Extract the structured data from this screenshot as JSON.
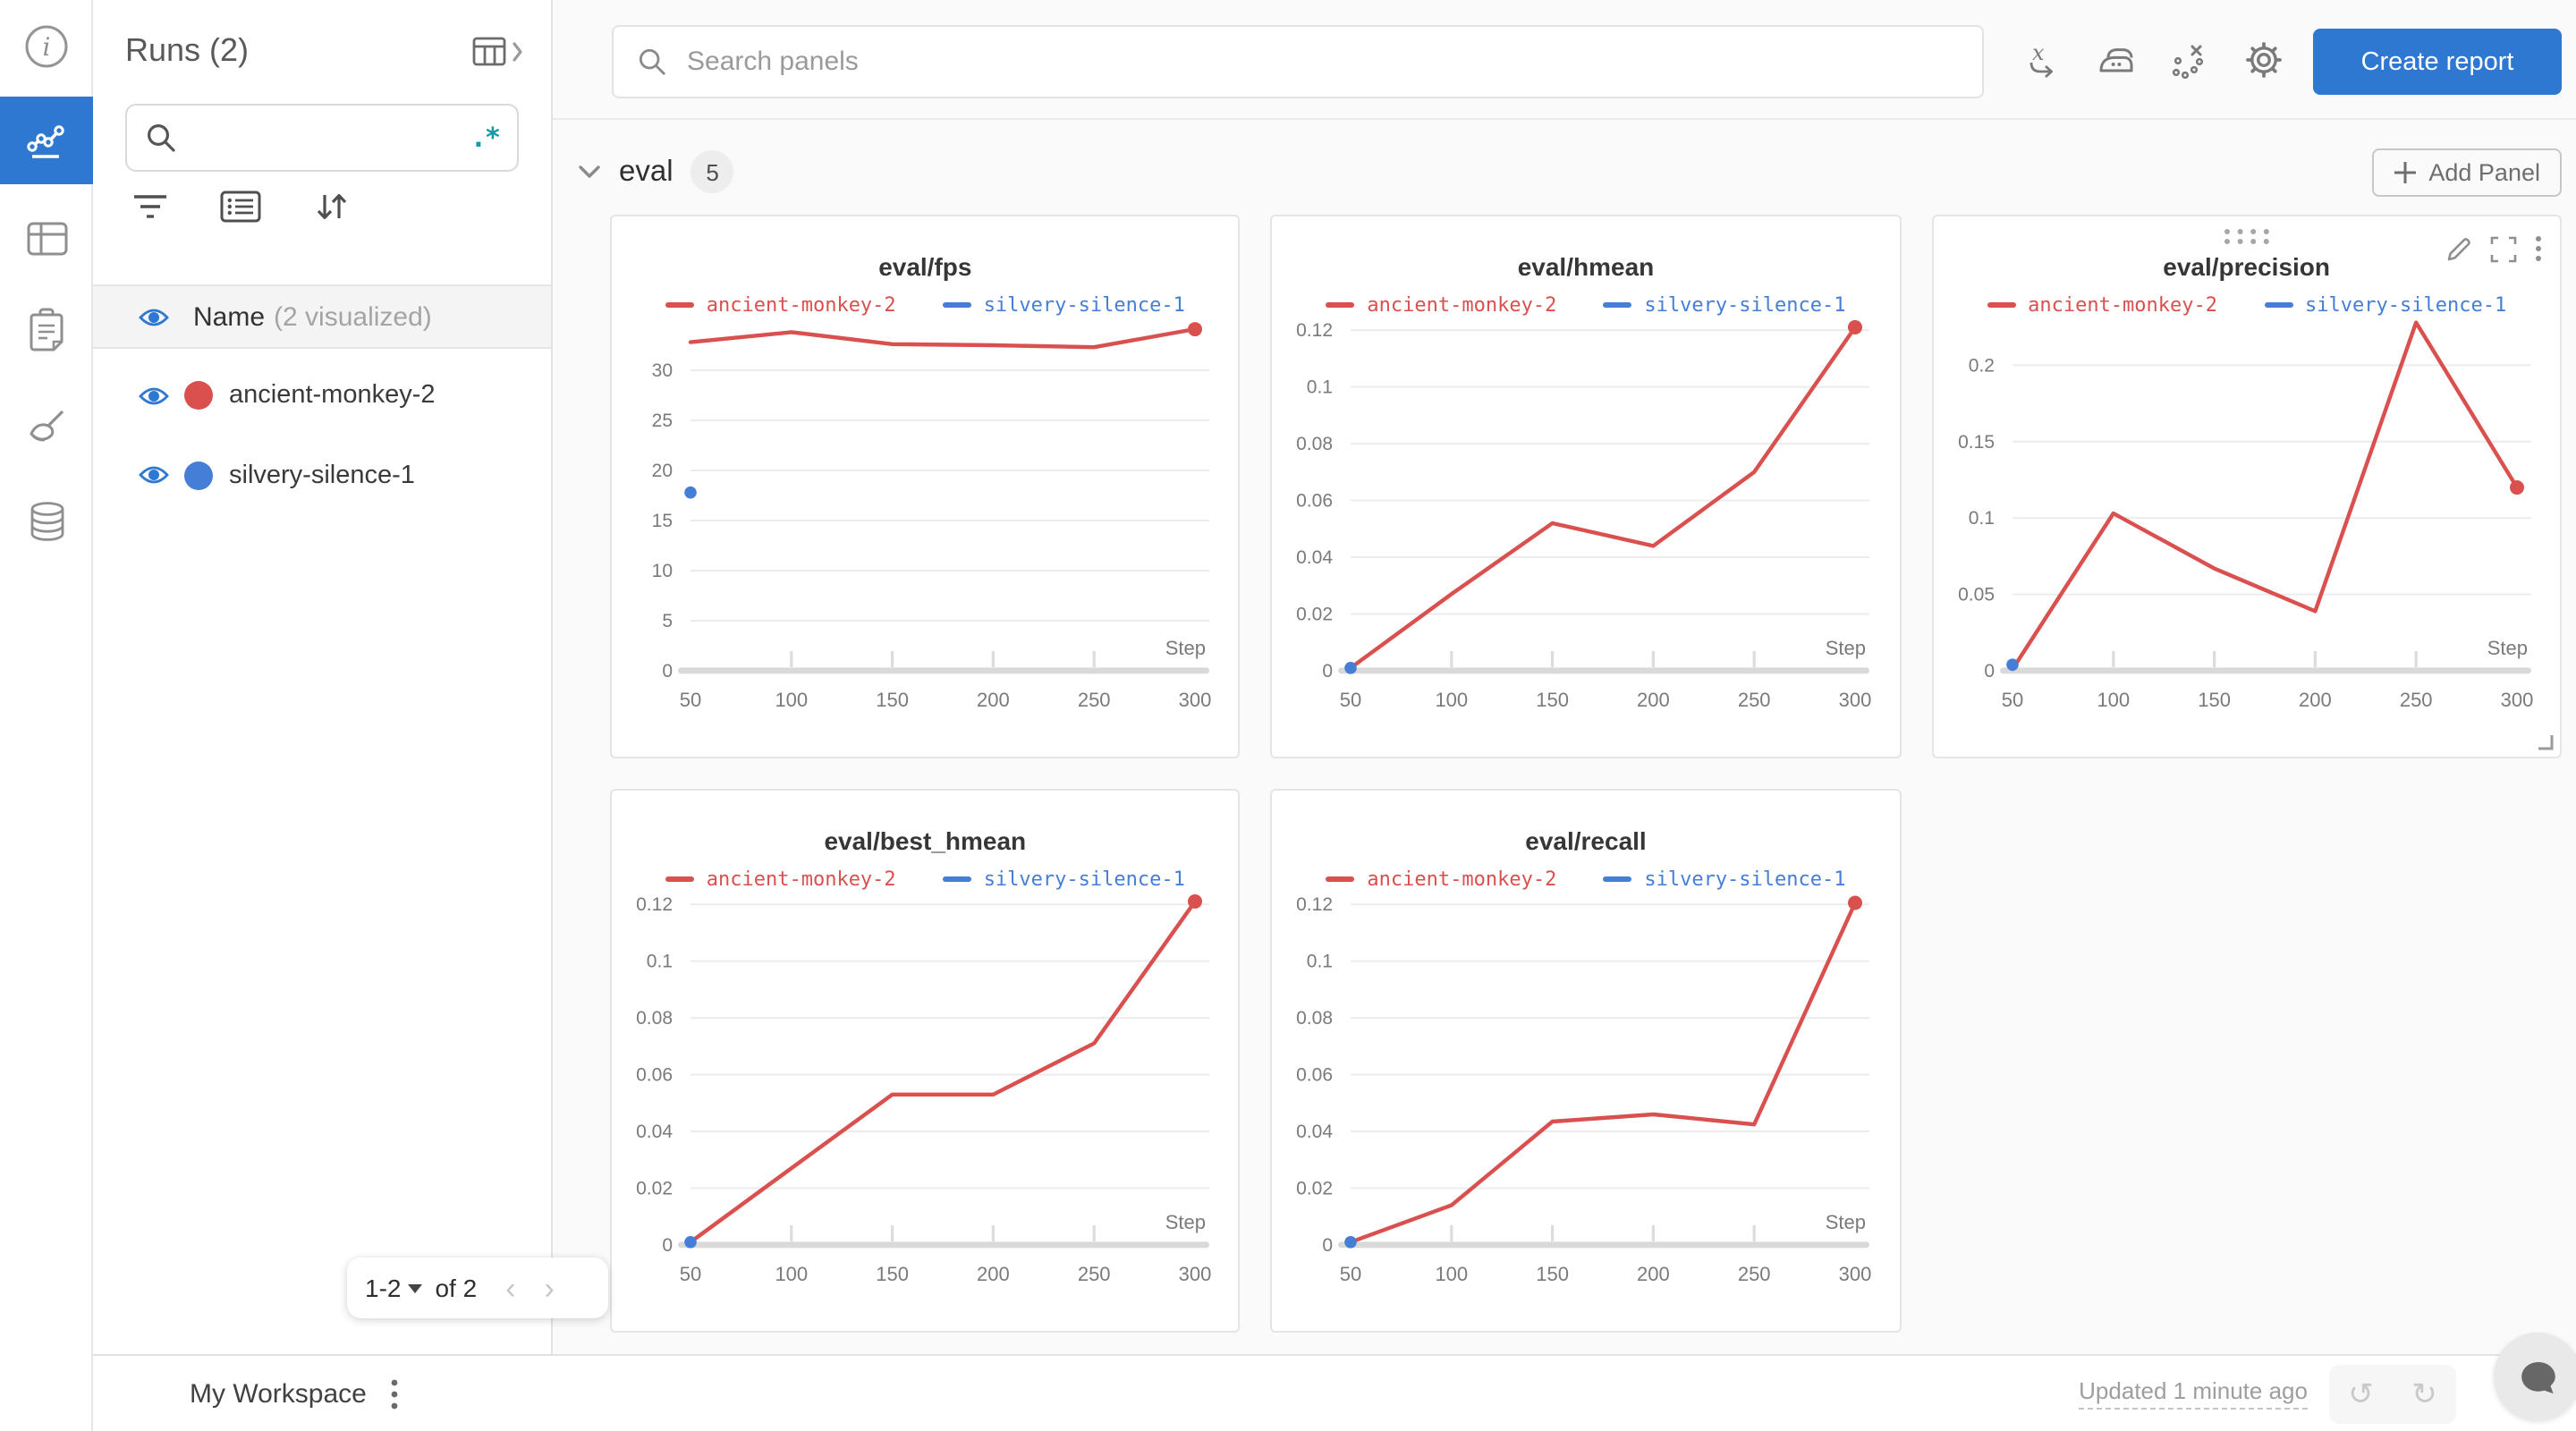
{
  "colors": {
    "accent_blue": "#2e78d2",
    "run_red": "#d9504e",
    "run_blue": "#447ed7",
    "regex_teal": "#0f9ba8"
  },
  "rail": {
    "items": [
      "info",
      "line-chart",
      "table",
      "clipboard",
      "brush",
      "database"
    ],
    "active_item": "line-chart"
  },
  "runs_panel": {
    "title": "Runs (2)",
    "search_placeholder": "",
    "regex_label": ".*",
    "name_header": {
      "label": "Name",
      "sub_label": "(2 visualized)"
    },
    "runs": [
      {
        "name": "ancient-monkey-2",
        "color": "#d9504e",
        "visible": true
      },
      {
        "name": "silvery-silence-1",
        "color": "#447ed7",
        "visible": true
      }
    ],
    "pagination": {
      "range_label": "1-2",
      "of_label": "of 2"
    }
  },
  "topbar": {
    "search_placeholder": "Search panels",
    "create_report_label": "Create report"
  },
  "section": {
    "name": "eval",
    "count": "5",
    "add_panel_label": "Add Panel"
  },
  "footer": {
    "workspace_label": "My Workspace",
    "updated_label": "Updated 1 minute ago"
  },
  "chart_data": [
    {
      "type": "line",
      "title": "eval/fps",
      "xlabel": "Step",
      "x_ticks": [
        50,
        100,
        150,
        200,
        250,
        300
      ],
      "y_ticks": [
        0,
        5,
        10,
        15,
        20,
        25,
        30
      ],
      "ylim": [
        0,
        35
      ],
      "xlim": [
        50,
        300
      ],
      "grid": true,
      "legend_position": "top",
      "hover_controls": false,
      "series": [
        {
          "name": "ancient-monkey-2",
          "color": "#d9504e",
          "style": "line",
          "end_marker": true,
          "x": [
            50,
            100,
            150,
            200,
            250,
            300
          ],
          "y": [
            32.8,
            33.8,
            32.6,
            32.5,
            32.3,
            34.1
          ]
        },
        {
          "name": "silvery-silence-1",
          "color": "#447ed7",
          "style": "points",
          "x": [
            50
          ],
          "y": [
            17.8
          ]
        }
      ]
    },
    {
      "type": "line",
      "title": "eval/hmean",
      "xlabel": "Step",
      "x_ticks": [
        50,
        100,
        150,
        200,
        250,
        300
      ],
      "y_ticks": [
        0,
        0.02,
        0.04,
        0.06,
        0.08,
        0.1,
        0.12
      ],
      "ylim": [
        0,
        0.1235
      ],
      "xlim": [
        50,
        300
      ],
      "grid": true,
      "legend_position": "top",
      "hover_controls": false,
      "series": [
        {
          "name": "ancient-monkey-2",
          "color": "#d9504e",
          "style": "line",
          "end_marker": true,
          "x": [
            50,
            100,
            150,
            200,
            250,
            300
          ],
          "y": [
            0.001,
            0.027,
            0.052,
            0.044,
            0.07,
            0.121
          ]
        },
        {
          "name": "silvery-silence-1",
          "color": "#447ed7",
          "style": "points",
          "x": [
            50
          ],
          "y": [
            0.001
          ]
        }
      ]
    },
    {
      "type": "line",
      "title": "eval/precision",
      "xlabel": "Step",
      "x_ticks": [
        50,
        100,
        150,
        200,
        250,
        300
      ],
      "y_ticks": [
        0,
        0.05,
        0.1,
        0.15,
        0.2
      ],
      "ylim": [
        0,
        0.2295
      ],
      "xlim": [
        50,
        300
      ],
      "grid": true,
      "legend_position": "top",
      "hover_controls": true,
      "series": [
        {
          "name": "ancient-monkey-2",
          "color": "#d9504e",
          "style": "line",
          "end_marker": true,
          "x": [
            50,
            100,
            150,
            200,
            250,
            300
          ],
          "y": [
            0.001,
            0.103,
            0.067,
            0.039,
            0.228,
            0.12
          ]
        },
        {
          "name": "silvery-silence-1",
          "color": "#447ed7",
          "style": "points",
          "x": [
            50
          ],
          "y": [
            0.004
          ]
        }
      ]
    },
    {
      "type": "line",
      "title": "eval/best_hmean",
      "xlabel": "Step",
      "x_ticks": [
        50,
        100,
        150,
        200,
        250,
        300
      ],
      "y_ticks": [
        0,
        0.02,
        0.04,
        0.06,
        0.08,
        0.1,
        0.12
      ],
      "ylim": [
        0,
        0.1235
      ],
      "xlim": [
        50,
        300
      ],
      "grid": true,
      "legend_position": "top",
      "hover_controls": false,
      "series": [
        {
          "name": "ancient-monkey-2",
          "color": "#d9504e",
          "style": "line",
          "end_marker": true,
          "x": [
            50,
            100,
            150,
            200,
            250,
            300
          ],
          "y": [
            0.001,
            0.027,
            0.053,
            0.053,
            0.071,
            0.121
          ]
        },
        {
          "name": "silvery-silence-1",
          "color": "#447ed7",
          "style": "points",
          "x": [
            50
          ],
          "y": [
            0.001
          ]
        }
      ]
    },
    {
      "type": "line",
      "title": "eval/recall",
      "xlabel": "Step",
      "x_ticks": [
        50,
        100,
        150,
        200,
        250,
        300
      ],
      "y_ticks": [
        0,
        0.02,
        0.04,
        0.06,
        0.08,
        0.1,
        0.12
      ],
      "ylim": [
        0,
        0.1235
      ],
      "xlim": [
        50,
        300
      ],
      "grid": true,
      "legend_position": "top",
      "hover_controls": false,
      "series": [
        {
          "name": "ancient-monkey-2",
          "color": "#d9504e",
          "style": "line",
          "end_marker": true,
          "x": [
            50,
            100,
            150,
            200,
            250,
            300
          ],
          "y": [
            0.001,
            0.014,
            0.0435,
            0.046,
            0.0425,
            0.1205
          ]
        },
        {
          "name": "silvery-silence-1",
          "color": "#447ed7",
          "style": "points",
          "x": [
            50
          ],
          "y": [
            0.001
          ]
        }
      ]
    }
  ]
}
